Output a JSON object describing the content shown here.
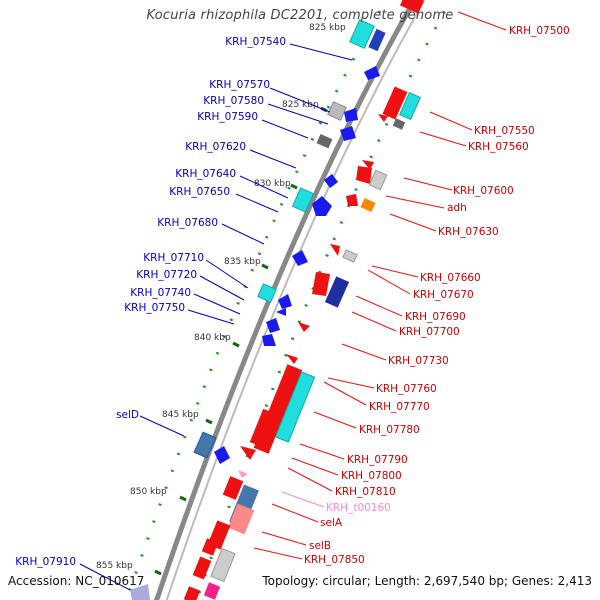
{
  "title": "Kocuria rhizophila DC2201, complete genome",
  "footer": {
    "accession": "Accession: NC_010617",
    "topology": "Topology: circular; Length: 2,697,540 bp; Genes: 2,413"
  },
  "colors": {
    "left_label": "#0000cc",
    "right_label": "#cc0000",
    "trna_label": "#ff88cc",
    "backbone": "#888888",
    "tick": "#118811",
    "kbp_tick": "#116611"
  },
  "scale_labels": [
    "825 kbp",
    "825 kbp",
    "830 kbp",
    "835 kbp",
    "840 kbp",
    "845 kbp",
    "850 kbp",
    "855 kbp"
  ],
  "left_labels": [
    "KRH_07540",
    "KRH_07570",
    "KRH_07580",
    "KRH_07590",
    "KRH_07620",
    "KRH_07640",
    "KRH_07650",
    "KRH_07680",
    "KRH_07710",
    "KRH_07720",
    "KRH_07740",
    "KRH_07750",
    "selD",
    "KRH_07910"
  ],
  "right_labels": [
    "KRH_07500",
    "KRH_07550",
    "KRH_07560",
    "KRH_07600",
    "adh",
    "KRH_07630",
    "KRH_07660",
    "KRH_07670",
    "KRH_07690",
    "KRH_07700",
    "KRH_07730",
    "KRH_07760",
    "KRH_07770",
    "KRH_07780",
    "KRH_07790",
    "KRH_07800",
    "KRH_07810",
    "selA",
    "selB",
    "KRH_07850"
  ],
  "trna_labels": [
    "KRH_t00160"
  ]
}
